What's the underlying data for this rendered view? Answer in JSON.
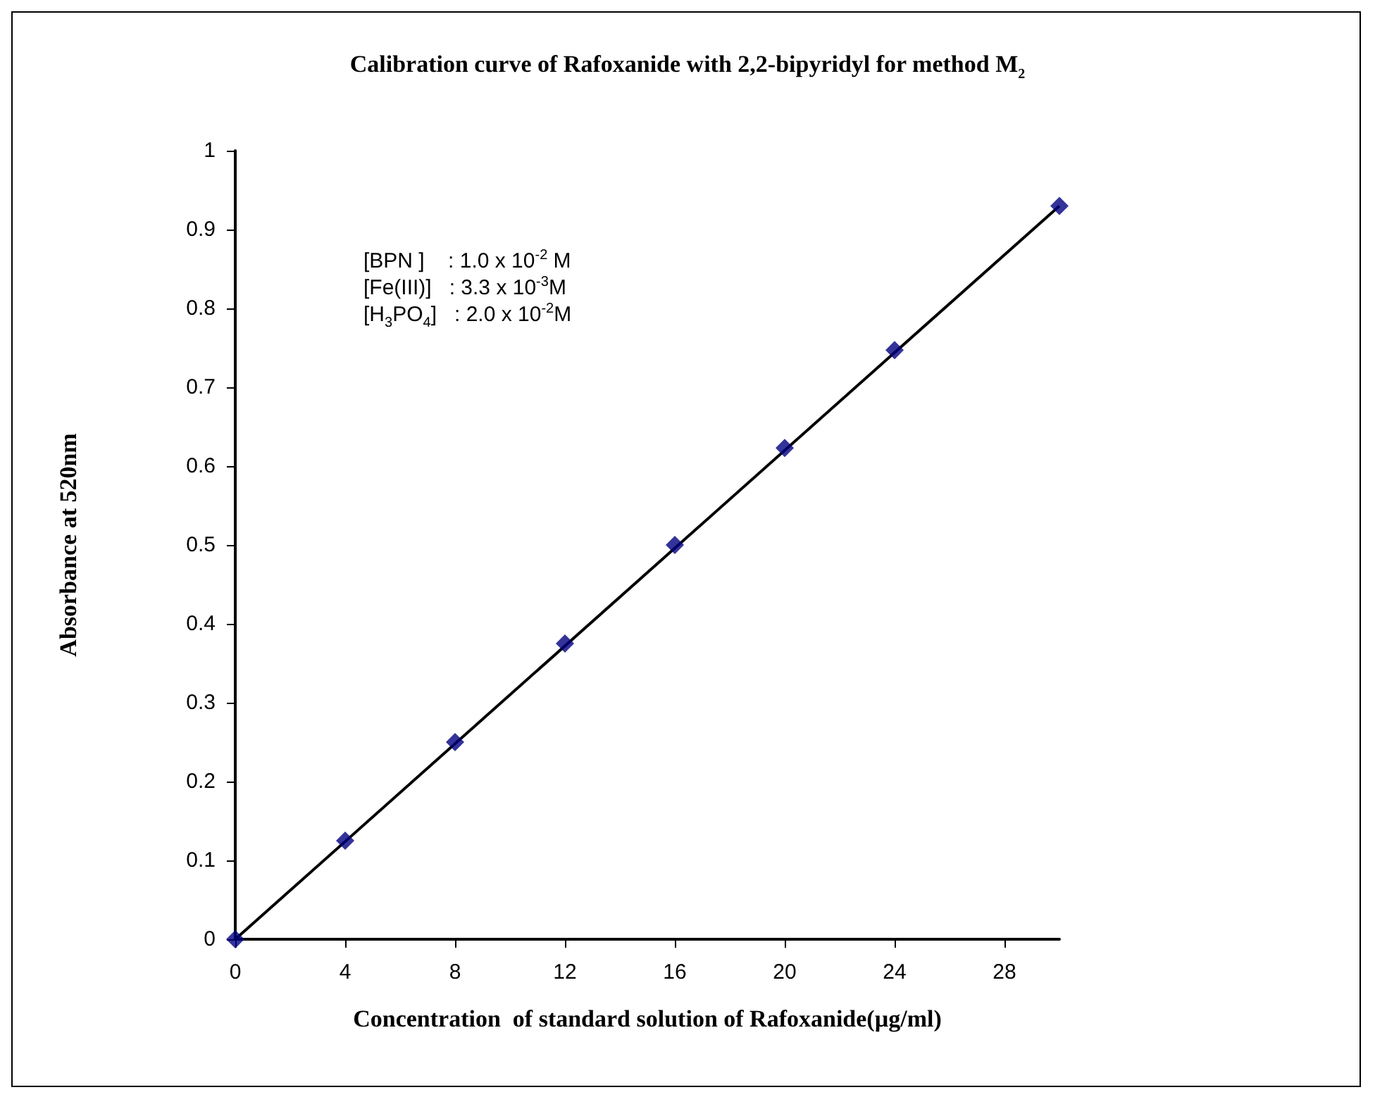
{
  "chart_data": {
    "type": "scatter",
    "title": "Calibration curve of Rafoxanide with 2,2-bipyridyl for method M$_{2}$",
    "xlabel": "Concentration  of standard solution of Rafoxanide(µg/ml)",
    "ylabel": "Absorbance at 520nm",
    "annotations": [
      "[BPN ]    : 1.0 x 10$^{-2}$ M",
      "[Fe(III)]   : 3.3 x 10$^{-3}$M",
      "[H$_{3}$PO$_{4}$]   : 2.0 x 10$^{-2}$M"
    ],
    "x": [
      0,
      4,
      8,
      12,
      16,
      20,
      24,
      30
    ],
    "series": [
      {
        "type": "line",
        "color": "#000000",
        "x": [
          0,
          30
        ],
        "values": [
          0,
          0.93
        ],
        "marker": "none"
      },
      {
        "color": "#000080",
        "values": [
          0,
          0.125,
          0.25,
          0.375,
          0.5,
          0.623,
          0.747,
          0.93
        ],
        "marker": "diamond"
      }
    ],
    "xlim": [
      0,
      30
    ],
    "xticks": [
      0,
      4,
      8,
      12,
      16,
      20,
      24,
      28
    ],
    "ylim": [
      0,
      1
    ],
    "yticks": [
      0,
      0.1,
      0.2,
      0.3,
      0.4,
      0.5,
      0.6,
      0.7,
      0.8,
      0.9,
      1
    ],
    "grid": false
  }
}
